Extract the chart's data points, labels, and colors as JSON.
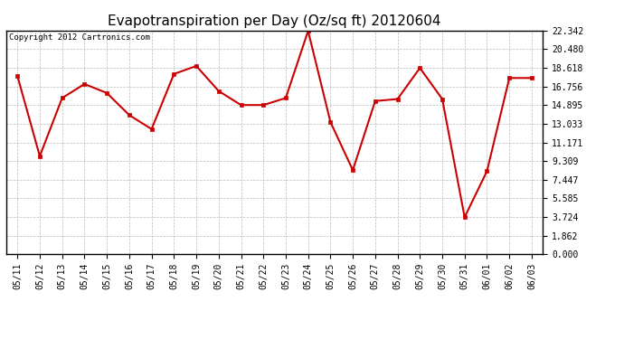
{
  "title": "Evapotranspiration per Day (Oz/sq ft) 20120604",
  "copyright": "Copyright 2012 Cartronics.com",
  "dates": [
    "05/11",
    "05/12",
    "05/13",
    "05/14",
    "05/15",
    "05/16",
    "05/17",
    "05/18",
    "05/19",
    "05/20",
    "05/21",
    "05/22",
    "05/23",
    "05/24",
    "05/25",
    "05/26",
    "05/27",
    "05/28",
    "05/29",
    "05/30",
    "05/31",
    "06/01",
    "06/02",
    "06/03"
  ],
  "values": [
    17.8,
    9.8,
    15.6,
    17.0,
    16.1,
    13.9,
    12.5,
    18.0,
    18.8,
    16.3,
    14.9,
    14.9,
    15.6,
    22.3,
    13.2,
    8.4,
    15.3,
    15.5,
    18.6,
    15.5,
    3.7,
    8.3,
    17.6,
    17.6
  ],
  "line_color": "#cc0000",
  "marker": "s",
  "marker_size": 3,
  "line_width": 1.5,
  "background_color": "#ffffff",
  "grid_color": "#bbbbbb",
  "ytick_values": [
    0.0,
    1.862,
    3.724,
    5.585,
    7.447,
    9.309,
    11.171,
    13.033,
    14.895,
    16.756,
    18.618,
    20.48,
    22.342
  ],
  "ylim": [
    0.0,
    22.342
  ],
  "title_fontsize": 11,
  "copyright_fontsize": 6.5,
  "tick_fontsize": 7,
  "fig_width": 6.9,
  "fig_height": 3.75,
  "dpi": 100
}
